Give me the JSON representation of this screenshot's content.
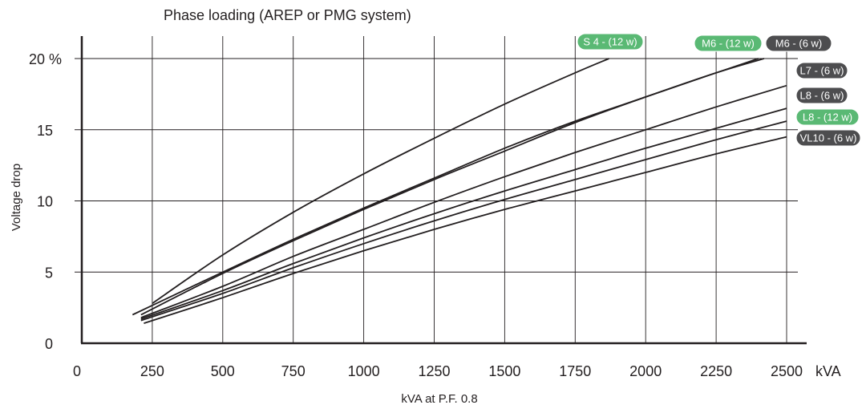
{
  "chart_data": {
    "type": "line",
    "title": "Phase loading (AREP or PMG system)",
    "xlabel": "kVA at P.F. 0.8",
    "ylabel": "Voltage drop",
    "x_unit": "kVA",
    "y_unit": "%",
    "xlim": [
      0,
      2500
    ],
    "ylim": [
      0,
      20
    ],
    "x_ticks": [
      "0",
      "250",
      "500",
      "750",
      "1000",
      "1250",
      "1500",
      "1750",
      "2000",
      "2250",
      "2500"
    ],
    "y_ticks": [
      "0",
      "5",
      "10",
      "15",
      "20 %"
    ],
    "grid": true,
    "label_colors": {
      "green": "#5ab974",
      "dark": "#4d4d4f"
    },
    "series": [
      {
        "name": "S 4 - (12 w)",
        "label_color": "green",
        "x": [
          250,
          500,
          750,
          1000,
          1250,
          1500,
          1750,
          1870
        ],
        "y": [
          2.8,
          6.2,
          9.2,
          11.9,
          14.4,
          16.8,
          19.0,
          20.0
        ]
      },
      {
        "name": "M6 - (12 w)",
        "label_color": "green",
        "x": [
          180,
          500,
          750,
          1000,
          1250,
          1500,
          1750,
          2000,
          2250,
          2400
        ],
        "y": [
          2.0,
          5.0,
          7.3,
          9.5,
          11.6,
          13.7,
          15.6,
          17.3,
          19.0,
          20.0
        ]
      },
      {
        "name": "M6 - (6 w)",
        "label_color": "dark",
        "x": [
          210,
          500,
          750,
          1000,
          1250,
          1500,
          1750,
          2000,
          2250,
          2420
        ],
        "y": [
          2.0,
          4.9,
          7.2,
          9.4,
          11.5,
          13.5,
          15.5,
          17.3,
          19.0,
          20.0
        ]
      },
      {
        "name": "L7 - (6 w)",
        "label_color": "dark",
        "x": [
          210,
          500,
          750,
          1000,
          1250,
          1500,
          1750,
          2000,
          2250,
          2500
        ],
        "y": [
          1.8,
          4.0,
          6.1,
          8.0,
          9.9,
          11.7,
          13.4,
          15.0,
          16.6,
          18.1
        ]
      },
      {
        "name": "L8 - (6 w)",
        "label_color": "dark",
        "x": [
          210,
          500,
          750,
          1000,
          1250,
          1500,
          1750,
          2000,
          2250,
          2500
        ],
        "y": [
          1.7,
          3.7,
          5.6,
          7.4,
          9.1,
          10.7,
          12.2,
          13.7,
          15.1,
          16.5
        ]
      },
      {
        "name": "L8 - (12 w)",
        "label_color": "green",
        "x": [
          210,
          500,
          750,
          1000,
          1250,
          1500,
          1750,
          2000,
          2250,
          2500
        ],
        "y": [
          1.6,
          3.5,
          5.3,
          7.0,
          8.6,
          10.1,
          11.5,
          12.9,
          14.3,
          15.6
        ]
      },
      {
        "name": "VL10 - (6 w)",
        "label_color": "dark",
        "x": [
          220,
          500,
          750,
          1000,
          1250,
          1500,
          1750,
          2000,
          2250,
          2500
        ],
        "y": [
          1.4,
          3.2,
          4.9,
          6.5,
          8.0,
          9.4,
          10.7,
          12.0,
          13.3,
          14.5
        ]
      }
    ]
  }
}
